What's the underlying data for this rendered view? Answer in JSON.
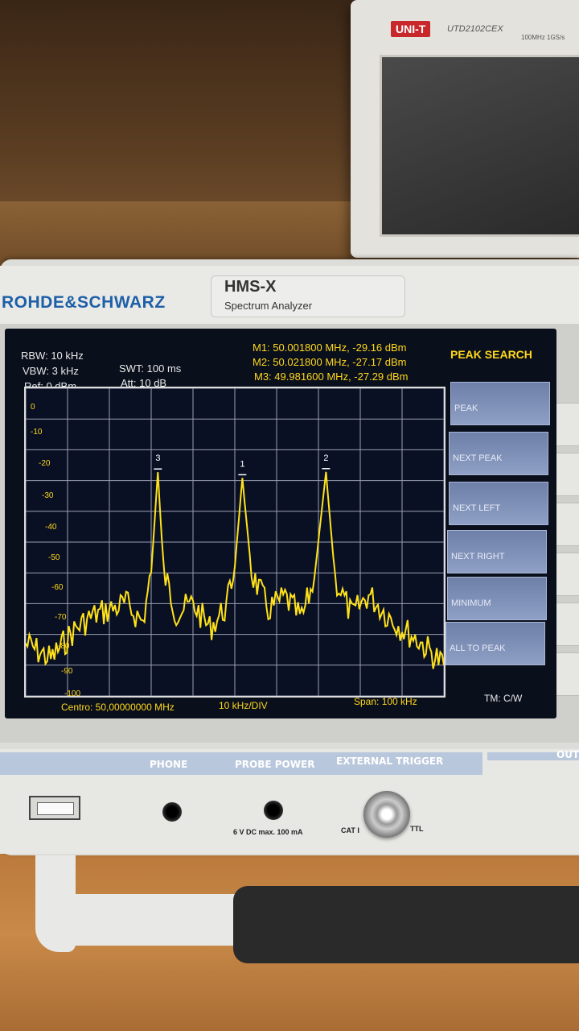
{
  "background_scope": {
    "brand": "UNI-T",
    "model": "UTD2102CEX",
    "freq": "100MHz 1GS/s"
  },
  "instrument": {
    "brand": "ROHDE&SCHWARZ",
    "model": "HMS-X",
    "model_sub": "Spectrum Analyzer"
  },
  "settings": {
    "rbw": "RBW: 10 kHz",
    "vbw": "VBW: 3 kHz",
    "ref": "Ref: 0 dBm",
    "swt": "SWT: 100 ms",
    "att": "Att: 10 dB"
  },
  "markers": [
    {
      "label": "M1: 50.001800 MHz, -29.16 dBm",
      "id": "1"
    },
    {
      "label": "M2: 50.021800 MHz, -27.17 dBm",
      "id": "2"
    },
    {
      "label": "M3: 49.981600 MHz, -27.29 dBm",
      "id": "3"
    }
  ],
  "menu": {
    "title": "PEAK SEARCH",
    "items": [
      "PEAK",
      "NEXT PEAK",
      "NEXT LEFT",
      "NEXT RIGHT",
      "MINIMUM",
      "ALL TO PEAK"
    ]
  },
  "status": {
    "center": "Centro: 50,00000000 MHz",
    "div": "10 kHz/DIV",
    "span": "Span: 100 kHz",
    "tm": "TM: C/W"
  },
  "panel": {
    "phone": "PHONE",
    "probe_power": "PROBE POWER",
    "external_trigger": "EXTERNAL TRIGGER",
    "outp": "OUT",
    "probe_spec": "6 V DC  max. 100 mA",
    "cat": "CAT I",
    "ttl": "TTL"
  },
  "chart_data": {
    "type": "line",
    "xlabel": "",
    "ylabel": "",
    "x_range_khz": [
      49950,
      50050
    ],
    "ylim": [
      -100,
      0
    ],
    "y_ticks": [
      "0",
      "-10",
      "-20",
      "-30",
      "-40",
      "-50",
      "-60",
      "-70",
      "-80",
      "-90",
      "-100"
    ],
    "grid": true,
    "series": [
      {
        "color": "#ffe21a",
        "x_khz": [
          49950,
          49956,
          49962,
          49966,
          49970,
          49974,
          49978,
          49980,
          49981.6,
          49983,
          49986,
          49990,
          49994,
          49998,
          50000,
          50001.8,
          50004,
          50008,
          50012,
          50016,
          50019,
          50021.8,
          50024,
          50028,
          50032,
          50036,
          50040,
          50044,
          50050
        ],
        "y_dbm": [
          -83,
          -88,
          -78,
          -74,
          -72,
          -70,
          -76,
          -60,
          -27.29,
          -60,
          -73,
          -70,
          -78,
          -71,
          -58,
          -29.16,
          -60,
          -72,
          -68,
          -75,
          -62,
          -27.17,
          -62,
          -74,
          -67,
          -73,
          -78,
          -82,
          -90
        ]
      }
    ],
    "markers": [
      {
        "name": "1",
        "x_khz": 50001.8,
        "y_dbm": -29.16
      },
      {
        "name": "2",
        "x_khz": 50021.8,
        "y_dbm": -27.17
      },
      {
        "name": "3",
        "x_khz": 49981.6,
        "y_dbm": -27.29
      }
    ]
  }
}
